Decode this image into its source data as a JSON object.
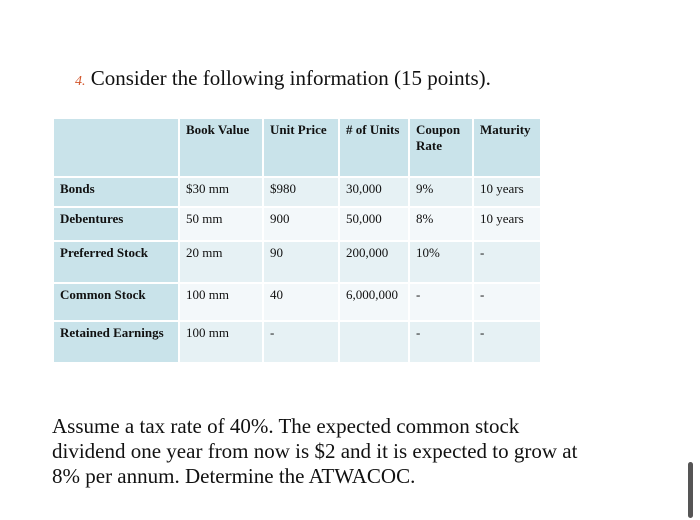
{
  "heading": {
    "number": "4.",
    "text": "Consider the following information  (15 points)."
  },
  "table": {
    "header": [
      null,
      "Book Value",
      "Unit Price",
      "# of Units",
      "Coupon Rate",
      "Maturity"
    ],
    "rows": [
      [
        "Bonds",
        "$30 mm",
        "$980",
        "30,000",
        "9%",
        "10 years"
      ],
      [
        "Debentures",
        "50 mm",
        "900",
        "50,000",
        "8%",
        "10 years"
      ],
      [
        "Preferred Stock",
        "20 mm",
        "90",
        "200,000",
        "10%",
        "-"
      ],
      [
        "Common Stock",
        "100 mm",
        "40",
        "6,000,000",
        "-",
        "-"
      ],
      [
        "Retained Earnings",
        "100 mm",
        "-",
        null,
        "-",
        "-"
      ]
    ]
  },
  "paragraph": [
    "Assume a tax rate of 40%.  The expected common stock",
    "dividend one year from now is $2 and it is expected to grow at",
    "8% per annum.  Determine the  ATWACOC."
  ]
}
